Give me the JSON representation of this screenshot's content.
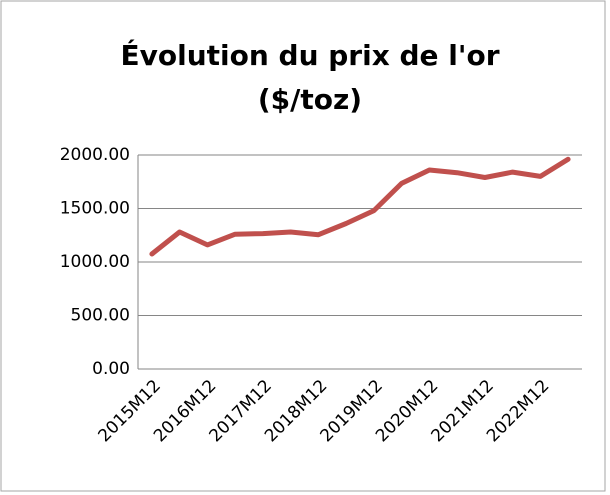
{
  "chart_data": {
    "type": "line",
    "title": [
      "Évolution du prix de l'or",
      "($/toz)"
    ],
    "categories": [
      "2015M12",
      null,
      "2016M12",
      null,
      "2017M12",
      null,
      "2018M12",
      null,
      "2019M12",
      null,
      "2020M12",
      null,
      "2021M12",
      null,
      "2022M12",
      null
    ],
    "series": [
      {
        "name": "Prix de l'or",
        "color": "#c0504d",
        "values": [
          1075,
          1280,
          1160,
          1260,
          1265,
          1280,
          1255,
          1360,
          1480,
          1735,
          1860,
          1835,
          1790,
          1840,
          1800,
          1960
        ]
      }
    ],
    "ylim": [
      0,
      2000
    ],
    "yticks": [
      {
        "value": 0,
        "label": "0.00"
      },
      {
        "value": 500,
        "label": "500.00"
      },
      {
        "value": 1000,
        "label": "1000.00"
      },
      {
        "value": 1500,
        "label": "1500.00"
      },
      {
        "value": 2000,
        "label": "2000.00"
      }
    ],
    "grid": true
  }
}
